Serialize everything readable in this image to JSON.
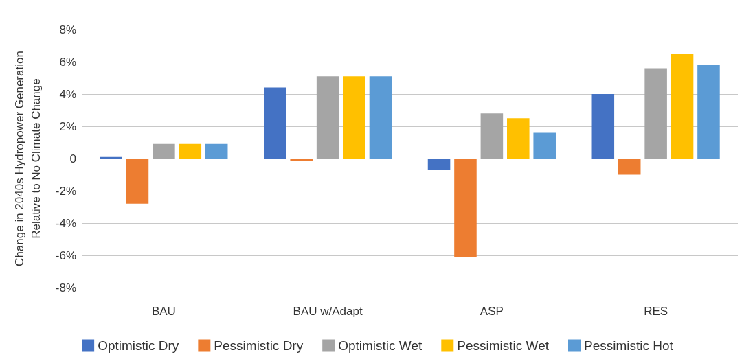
{
  "chart_data": {
    "type": "bar",
    "ylabel": "Change in 2040s Hydropower Generation\nRelative to No Climate Change",
    "categories": [
      "BAU",
      "BAU w/Adapt",
      "ASP",
      "RES"
    ],
    "series": [
      {
        "name": "Optimistic Dry",
        "color": "#4472c4",
        "values": [
          0.1,
          4.4,
          -0.7,
          4.0
        ]
      },
      {
        "name": "Pessimistic Dry",
        "color": "#ed7d31",
        "values": [
          -2.8,
          -0.15,
          -6.1,
          -1.0
        ]
      },
      {
        "name": "Optimistic Wet",
        "color": "#a5a5a5",
        "values": [
          0.9,
          5.1,
          2.8,
          5.6
        ]
      },
      {
        "name": "Pessimistic Wet",
        "color": "#ffc000",
        "values": [
          0.9,
          5.1,
          2.5,
          6.5
        ]
      },
      {
        "name": "Pessimistic Hot",
        "color": "#5b9bd5",
        "values": [
          0.9,
          5.1,
          1.6,
          5.8
        ]
      }
    ],
    "ylim": [
      -8,
      8
    ],
    "yticks": [
      {
        "value": -8,
        "label": "-8%"
      },
      {
        "value": -6,
        "label": "-6%"
      },
      {
        "value": -4,
        "label": "-4%"
      },
      {
        "value": -2,
        "label": "-2%"
      },
      0,
      {
        "value": 2,
        "label": "2%"
      },
      {
        "value": 4,
        "label": "4%"
      },
      {
        "value": 6,
        "label": "6%"
      },
      {
        "value": 8,
        "label": "8%"
      }
    ],
    "grid": "y",
    "legend": "bottom"
  }
}
